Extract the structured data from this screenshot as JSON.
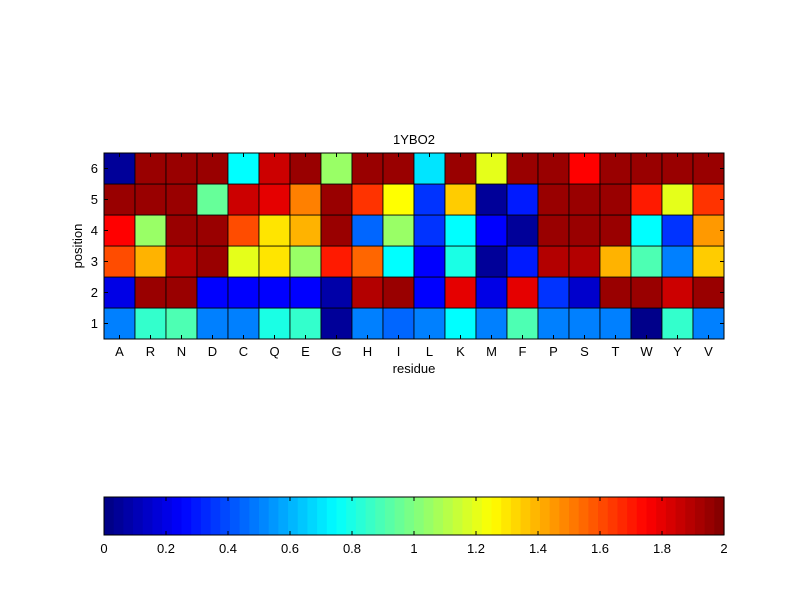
{
  "chart_data": [
    {
      "type": "heatmap",
      "title": "1YBO2",
      "xlabel": "residue",
      "ylabel": "position",
      "x_categories": [
        "A",
        "R",
        "N",
        "D",
        "C",
        "Q",
        "E",
        "G",
        "H",
        "I",
        "L",
        "K",
        "M",
        "F",
        "P",
        "S",
        "T",
        "W",
        "Y",
        "V"
      ],
      "y_categories": [
        "1",
        "2",
        "3",
        "4",
        "5",
        "6"
      ],
      "colormap": "jet",
      "clim": [
        0,
        2
      ],
      "values": [
        [
          0.5,
          0.85,
          0.9,
          0.5,
          0.5,
          0.8,
          0.85,
          0.05,
          0.5,
          0.45,
          0.5,
          0.75,
          0.5,
          0.9,
          0.5,
          0.5,
          0.5,
          0.02,
          0.85,
          0.5
        ],
        [
          0.2,
          1.95,
          1.95,
          0.25,
          0.25,
          0.25,
          0.25,
          0.08,
          1.9,
          1.95,
          0.25,
          1.8,
          0.2,
          1.8,
          0.35,
          0.15,
          1.95,
          1.95,
          1.85,
          1.95
        ],
        [
          1.6,
          1.4,
          1.9,
          1.95,
          1.2,
          1.3,
          1.05,
          1.7,
          1.55,
          0.75,
          0.25,
          0.8,
          0.05,
          0.3,
          1.9,
          1.9,
          1.4,
          0.9,
          0.5,
          1.35
        ],
        [
          1.75,
          1.05,
          1.95,
          1.95,
          1.6,
          1.3,
          1.4,
          1.95,
          0.45,
          1.05,
          0.35,
          0.75,
          0.25,
          0.05,
          1.95,
          1.95,
          1.95,
          0.75,
          0.35,
          1.45
        ],
        [
          1.95,
          1.95,
          1.95,
          0.95,
          1.85,
          1.8,
          1.5,
          1.95,
          1.65,
          1.25,
          0.35,
          1.35,
          0.05,
          0.3,
          1.95,
          1.95,
          1.95,
          1.7,
          1.2,
          1.65
        ],
        [
          0.05,
          1.95,
          1.95,
          1.95,
          0.75,
          1.85,
          1.95,
          1.05,
          1.95,
          1.95,
          0.7,
          1.95,
          1.2,
          1.95,
          1.95,
          1.75,
          1.95,
          1.95,
          1.95,
          1.95
        ]
      ],
      "colorbar": {
        "ticks": [
          0,
          0.2,
          0.4,
          0.6,
          0.8,
          1,
          1.2,
          1.4,
          1.6,
          1.8,
          2
        ],
        "tick_labels": [
          "0",
          "0.2",
          "0.4",
          "0.6",
          "0.8",
          "1",
          "1.2",
          "1.4",
          "1.6",
          "1.8",
          "2"
        ]
      }
    }
  ]
}
